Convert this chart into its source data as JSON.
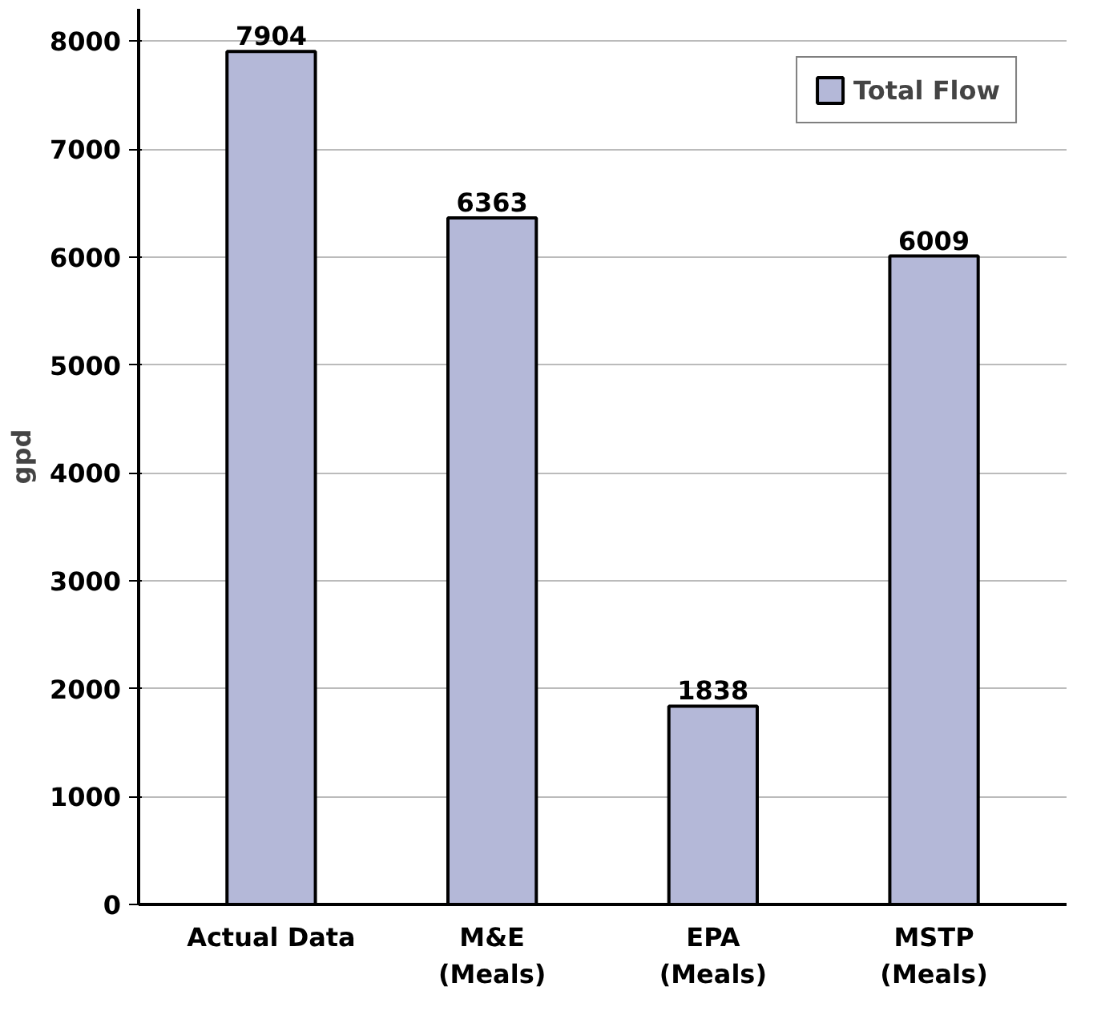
{
  "chart_data": {
    "type": "bar",
    "ylabel": "gpd",
    "categories": [
      "Actual Data",
      "M&E\n(Meals)",
      "EPA\n(Meals)",
      "MSTP\n(Meals)"
    ],
    "series": [
      {
        "name": "Total Flow",
        "color": "#b4b8d8",
        "values": [
          7904,
          6363,
          1838,
          6009
        ]
      }
    ],
    "ylim": [
      0,
      8300
    ],
    "yticks": [
      0,
      1000,
      2000,
      3000,
      4000,
      5000,
      6000,
      7000,
      8000
    ],
    "grid": "y",
    "legend": "top right",
    "data_labels": true
  }
}
